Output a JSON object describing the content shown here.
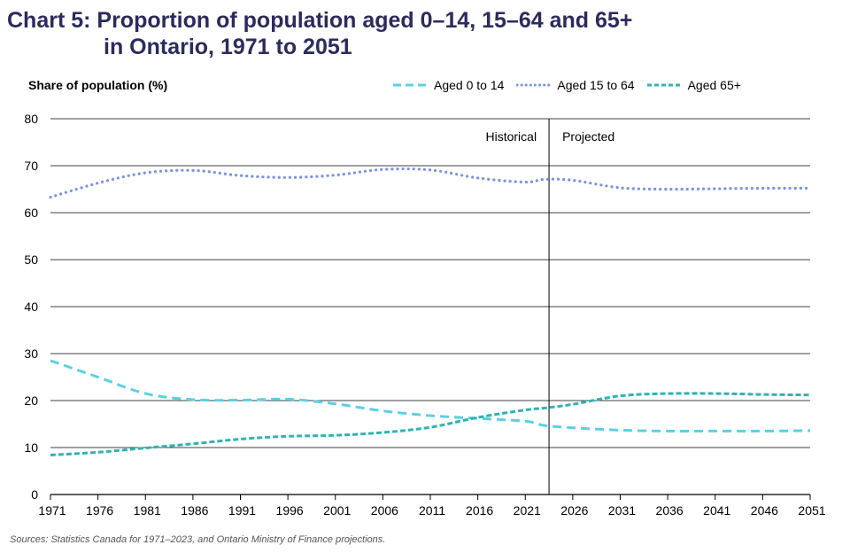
{
  "colors": {
    "title": "#2b2b5e",
    "aged_0_14": "#5bd0e6",
    "aged_15_64": "#7b93e3",
    "aged_65_plus": "#2fb3b3",
    "grid": "#000000"
  },
  "chart_data": {
    "type": "line",
    "title_line1": "Chart 5: Proportion of population aged 0–14, 15–64 and 65+",
    "title_line2": "in Ontario, 1971 to 2051",
    "ylabel": "Share of population (%)",
    "xlabel": "",
    "ylim": [
      0,
      80
    ],
    "yticks": [
      "0",
      "10",
      "20",
      "30",
      "40",
      "50",
      "60",
      "70",
      "80"
    ],
    "xlim": [
      1971,
      2051
    ],
    "xticks": [
      "1971",
      "1976",
      "1981",
      "1986",
      "1991",
      "1996",
      "2001",
      "2006",
      "2011",
      "2016",
      "2021",
      "2026",
      "2031",
      "2036",
      "2041",
      "2046",
      "2051"
    ],
    "grid": true,
    "legend_position": "top-right",
    "annotations": {
      "divider_year": 2023.5,
      "historical_label": "Historical",
      "projected_label": "Projected"
    },
    "source": "Sources: Statistics Canada for 1971–2023, and Ontario Ministry of Finance projections.",
    "series": [
      {
        "name": "Aged 0 to 14",
        "style": "dashed",
        "x": [
          1971,
          1976,
          1981,
          1986,
          1991,
          1996,
          2001,
          2006,
          2011,
          2016,
          2021,
          2023,
          2026,
          2031,
          2036,
          2041,
          2046,
          2051
        ],
        "values": [
          28.5,
          25.0,
          21.5,
          20.2,
          20.1,
          20.3,
          19.3,
          17.8,
          16.8,
          16.2,
          15.6,
          14.7,
          14.2,
          13.7,
          13.5,
          13.5,
          13.5,
          13.6
        ]
      },
      {
        "name": "Aged 15 to 64",
        "style": "dotted",
        "x": [
          1971,
          1976,
          1981,
          1986,
          1991,
          1996,
          2001,
          2006,
          2011,
          2016,
          2021,
          2023,
          2026,
          2031,
          2036,
          2041,
          2046,
          2051
        ],
        "values": [
          63.3,
          66.3,
          68.5,
          69.0,
          67.9,
          67.5,
          68.0,
          69.2,
          69.1,
          67.4,
          66.5,
          67.1,
          66.9,
          65.3,
          65.0,
          65.1,
          65.2,
          65.2
        ]
      },
      {
        "name": "Aged 65+",
        "style": "short-dash",
        "x": [
          1971,
          1976,
          1981,
          1986,
          1991,
          1996,
          2001,
          2006,
          2011,
          2016,
          2021,
          2023,
          2026,
          2031,
          2036,
          2041,
          2046,
          2051
        ],
        "values": [
          8.4,
          9.0,
          9.9,
          10.8,
          11.8,
          12.4,
          12.6,
          13.2,
          14.3,
          16.4,
          18.0,
          18.4,
          19.2,
          21.0,
          21.5,
          21.5,
          21.3,
          21.2
        ]
      }
    ]
  }
}
